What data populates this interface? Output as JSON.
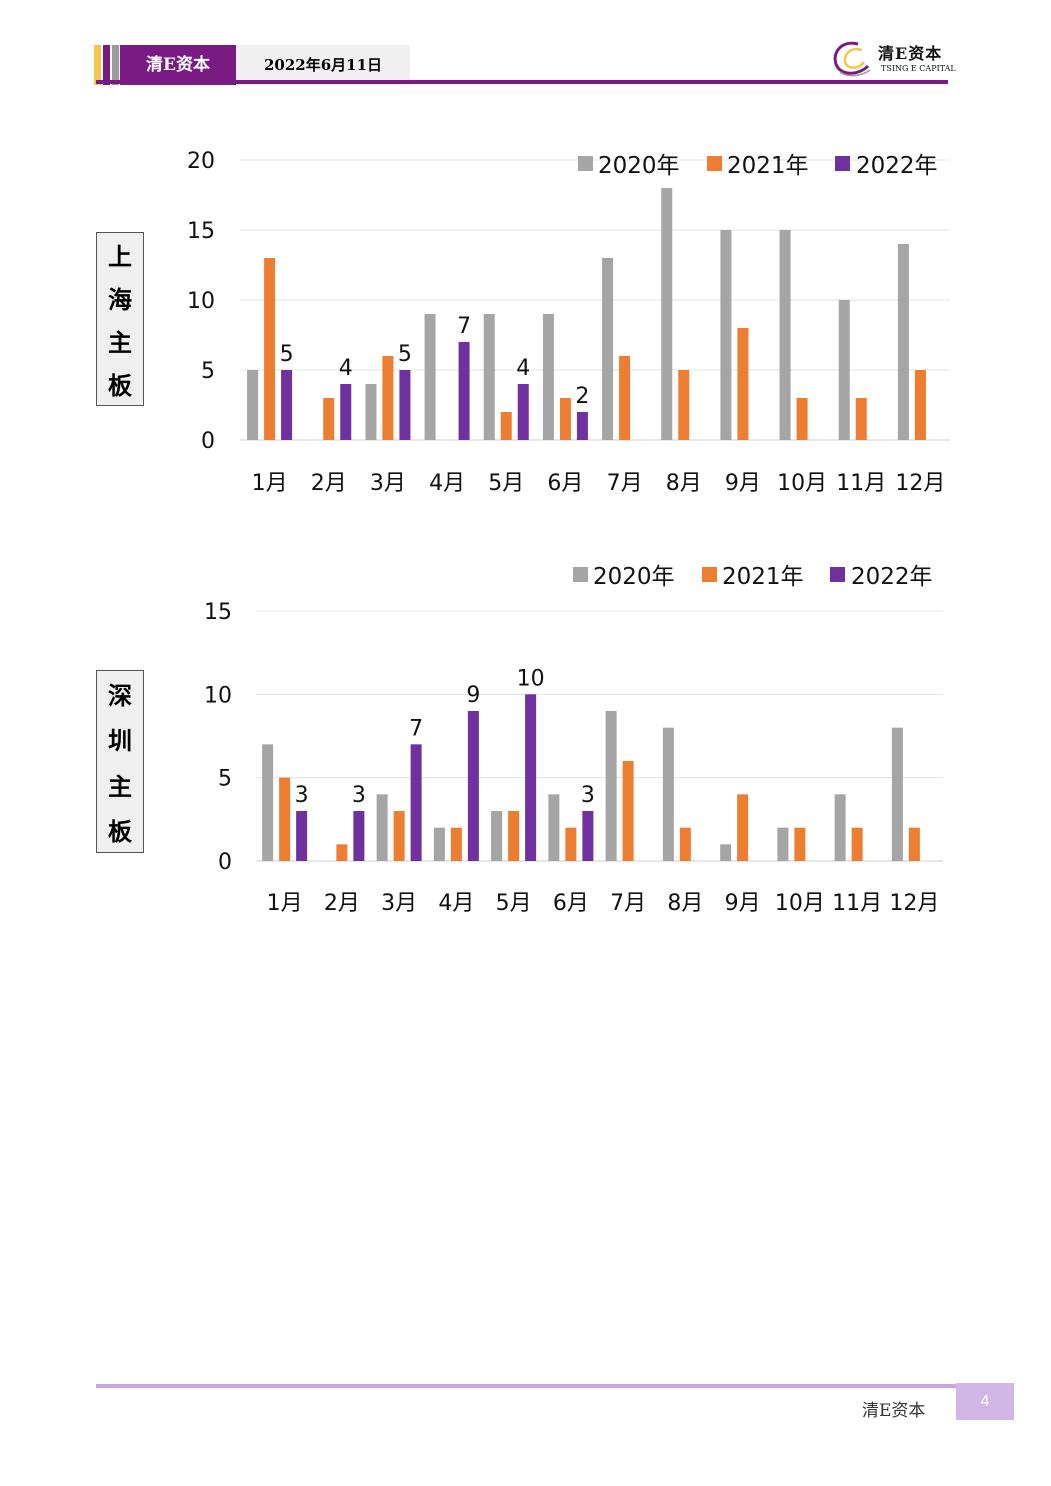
{
  "header": {
    "brand": "清E资本",
    "date": "2022年6月11日",
    "logo_cn": "清E资本",
    "logo_en": "TSING E CAPITAL",
    "logo_icon": "swirl-logo-icon"
  },
  "footer": {
    "brand": "清E资本",
    "page": "4"
  },
  "colors": {
    "y2020": "#a5a5a5",
    "y2021": "#ed7d31",
    "y2022": "#7030a0",
    "purple": "#7a1a83"
  },
  "chart_data": [
    {
      "type": "bar",
      "side_label": [
        "上",
        "海",
        "主",
        "板"
      ],
      "categories": [
        "1月",
        "2月",
        "3月",
        "4月",
        "5月",
        "6月",
        "7月",
        "8月",
        "9月",
        "10月",
        "11月",
        "12月"
      ],
      "series": [
        {
          "name": "2020年",
          "values": [
            5,
            0,
            4,
            9,
            9,
            9,
            13,
            18,
            15,
            15,
            10,
            14
          ]
        },
        {
          "name": "2021年",
          "values": [
            13,
            3,
            6,
            0,
            2,
            3,
            6,
            5,
            8,
            3,
            3,
            5
          ]
        },
        {
          "name": "2022年",
          "values": [
            5,
            4,
            5,
            7,
            4,
            2,
            null,
            null,
            null,
            null,
            null,
            null
          ]
        }
      ],
      "data_labels": "2022年",
      "ylim": [
        0,
        20
      ],
      "yticks": [
        "0",
        "5",
        "10",
        "15",
        "20"
      ],
      "grid": true,
      "legend": "top-right"
    },
    {
      "type": "bar",
      "side_label": [
        "深",
        "圳",
        "主",
        "板"
      ],
      "categories": [
        "1月",
        "2月",
        "3月",
        "4月",
        "5月",
        "6月",
        "7月",
        "8月",
        "9月",
        "10月",
        "11月",
        "12月"
      ],
      "series": [
        {
          "name": "2020年",
          "values": [
            7,
            0,
            4,
            2,
            3,
            4,
            9,
            8,
            1,
            2,
            4,
            8
          ]
        },
        {
          "name": "2021年",
          "values": [
            5,
            1,
            3,
            2,
            3,
            2,
            6,
            2,
            4,
            2,
            2,
            2
          ]
        },
        {
          "name": "2022年",
          "values": [
            3,
            3,
            7,
            9,
            10,
            3,
            null,
            null,
            null,
            null,
            null,
            null
          ]
        }
      ],
      "data_labels": "2022年",
      "ylim": [
        0,
        15
      ],
      "yticks": [
        "0",
        "5",
        "10",
        "15"
      ],
      "grid": true,
      "legend": "top-right"
    }
  ]
}
